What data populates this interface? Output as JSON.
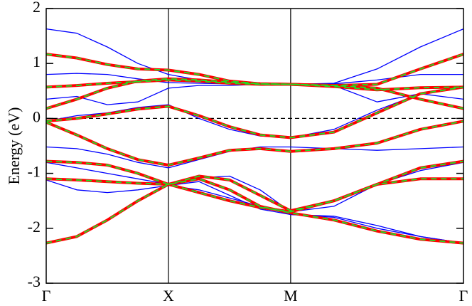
{
  "chart_data": {
    "type": "line",
    "ylabel": "Energy (eV)",
    "xlim": [
      0,
      3.414
    ],
    "xticks": [
      {
        "value": 0,
        "label": "Γ"
      },
      {
        "value": 1,
        "label": "X"
      },
      {
        "value": 2,
        "label": "M"
      },
      {
        "value": 3.414,
        "label": "Γ"
      }
    ],
    "ylim": [
      -3,
      2
    ],
    "yticks": [
      -3,
      -2,
      -1,
      0,
      1,
      2
    ],
    "hlines": [
      0
    ],
    "vlines_at_xticks": true,
    "x": [
      0,
      0.25,
      0.5,
      0.75,
      1,
      1.25,
      1.5,
      1.75,
      2,
      2.354,
      2.707,
      3.061,
      3.414
    ],
    "series": [
      {
        "color": "#0000ff",
        "width": 1.3,
        "bands": [
          [
            1.63,
            1.55,
            1.3,
            1.0,
            0.8,
            0.7,
            0.64,
            0.62,
            0.62,
            0.64,
            0.9,
            1.3,
            1.63
          ],
          [
            0.8,
            0.82,
            0.8,
            0.72,
            0.65,
            0.64,
            0.63,
            0.62,
            0.62,
            0.63,
            0.7,
            0.8,
            0.8
          ],
          [
            0.35,
            0.4,
            0.25,
            0.3,
            0.55,
            0.6,
            0.6,
            0.62,
            0.62,
            0.6,
            0.3,
            0.45,
            0.35
          ],
          [
            -0.05,
            0.05,
            0.1,
            0.2,
            0.25,
            0.0,
            -0.2,
            -0.32,
            -0.35,
            -0.2,
            0.15,
            0.45,
            0.57
          ],
          [
            -0.52,
            -0.55,
            -0.65,
            -0.8,
            -0.9,
            -0.75,
            -0.6,
            -0.52,
            -0.52,
            -0.55,
            -0.58,
            -0.55,
            -0.52
          ],
          [
            -0.8,
            -0.9,
            -1.0,
            -1.1,
            -1.2,
            -1.08,
            -1.05,
            -1.3,
            -1.7,
            -1.6,
            -1.2,
            -0.95,
            -0.8
          ],
          [
            -1.12,
            -1.3,
            -1.35,
            -1.3,
            -1.22,
            -1.3,
            -1.45,
            -1.6,
            -1.75,
            -1.78,
            -1.95,
            -2.15,
            -2.27
          ],
          [
            -2.27,
            -2.15,
            -1.85,
            -1.5,
            -1.22,
            -1.15,
            -1.4,
            -1.65,
            -1.75,
            -1.8,
            -2.0,
            -2.15,
            -2.27
          ]
        ]
      },
      {
        "color": "#ff0000",
        "width": 4,
        "bands": [
          [
            1.17,
            1.1,
            0.98,
            0.9,
            0.88,
            0.8,
            0.68,
            0.63,
            0.62,
            0.6,
            0.62,
            0.9,
            1.17
          ],
          [
            0.57,
            0.6,
            0.64,
            0.67,
            0.7,
            0.68,
            0.64,
            0.62,
            0.62,
            0.58,
            0.52,
            0.56,
            0.57
          ],
          [
            0.18,
            0.35,
            0.55,
            0.68,
            0.72,
            0.7,
            0.66,
            0.63,
            0.62,
            0.6,
            0.55,
            0.35,
            0.18
          ],
          [
            -0.05,
            0.0,
            0.08,
            0.17,
            0.22,
            0.05,
            -0.15,
            -0.3,
            -0.35,
            -0.25,
            0.1,
            0.45,
            0.57
          ],
          [
            -0.07,
            -0.3,
            -0.55,
            -0.75,
            -0.85,
            -0.72,
            -0.58,
            -0.55,
            -0.6,
            -0.55,
            -0.45,
            -0.2,
            -0.05
          ],
          [
            -0.78,
            -0.8,
            -0.85,
            -1.0,
            -1.2,
            -1.35,
            -1.5,
            -1.62,
            -1.7,
            -1.5,
            -1.2,
            -0.9,
            -0.78
          ],
          [
            -1.1,
            -1.12,
            -1.15,
            -1.18,
            -1.2,
            -1.05,
            -1.12,
            -1.4,
            -1.68,
            -1.5,
            -1.2,
            -1.1,
            -1.1
          ],
          [
            -2.27,
            -2.15,
            -1.85,
            -1.5,
            -1.2,
            -1.1,
            -1.3,
            -1.6,
            -1.72,
            -1.85,
            -2.05,
            -2.2,
            -2.27
          ]
        ]
      },
      {
        "color": "#22dd22",
        "width": 2,
        "dash": true,
        "bands": [
          [
            1.17,
            1.1,
            0.98,
            0.9,
            0.88,
            0.8,
            0.68,
            0.63,
            0.62,
            0.6,
            0.62,
            0.9,
            1.17
          ],
          [
            0.57,
            0.6,
            0.64,
            0.67,
            0.7,
            0.68,
            0.64,
            0.62,
            0.62,
            0.58,
            0.52,
            0.56,
            0.57
          ],
          [
            0.18,
            0.35,
            0.55,
            0.68,
            0.72,
            0.7,
            0.66,
            0.63,
            0.62,
            0.6,
            0.55,
            0.35,
            0.18
          ],
          [
            -0.05,
            0.0,
            0.08,
            0.17,
            0.22,
            0.05,
            -0.15,
            -0.3,
            -0.35,
            -0.25,
            0.1,
            0.45,
            0.57
          ],
          [
            -0.07,
            -0.3,
            -0.55,
            -0.75,
            -0.85,
            -0.72,
            -0.58,
            -0.55,
            -0.6,
            -0.55,
            -0.45,
            -0.2,
            -0.05
          ],
          [
            -0.78,
            -0.8,
            -0.85,
            -1.0,
            -1.2,
            -1.35,
            -1.5,
            -1.62,
            -1.7,
            -1.5,
            -1.2,
            -0.9,
            -0.78
          ],
          [
            -1.1,
            -1.12,
            -1.15,
            -1.18,
            -1.2,
            -1.05,
            -1.12,
            -1.4,
            -1.68,
            -1.5,
            -1.2,
            -1.1,
            -1.1
          ],
          [
            -2.27,
            -2.15,
            -1.85,
            -1.5,
            -1.2,
            -1.1,
            -1.3,
            -1.6,
            -1.72,
            -1.85,
            -2.05,
            -2.2,
            -2.27
          ]
        ]
      }
    ]
  }
}
